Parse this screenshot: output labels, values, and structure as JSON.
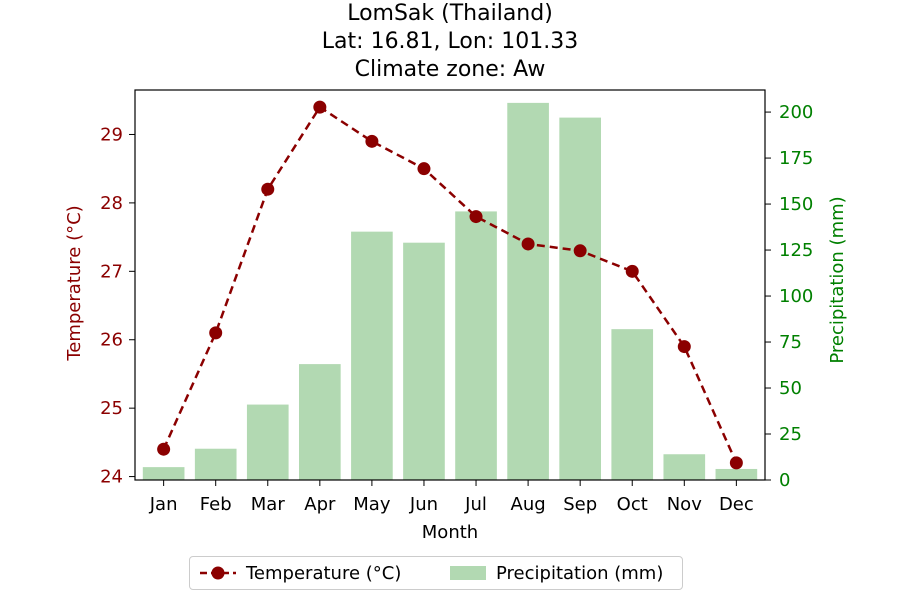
{
  "title": {
    "line1": "LomSak (Thailand)",
    "line2": "Lat: 16.81, Lon: 101.33",
    "line3": "Climate zone: Aw"
  },
  "chart_data": {
    "type": "bar",
    "categories": [
      "Jan",
      "Feb",
      "Mar",
      "Apr",
      "May",
      "Jun",
      "Jul",
      "Aug",
      "Sep",
      "Oct",
      "Nov",
      "Dec"
    ],
    "xlabel": "Month",
    "series": [
      {
        "name": "Temperature (°C)",
        "type": "line",
        "axis": "left",
        "color": "#8b0000",
        "values": [
          24.4,
          26.1,
          28.2,
          29.4,
          28.9,
          28.5,
          27.8,
          27.4,
          27.3,
          27.0,
          25.9,
          24.2
        ]
      },
      {
        "name": "Precipitation (mm)",
        "type": "bar",
        "axis": "right",
        "color": "#b2d9b2",
        "values": [
          7,
          17,
          41,
          63,
          135,
          129,
          146,
          205,
          197,
          82,
          14,
          6
        ]
      }
    ],
    "y_left": {
      "label": "Temperature (°C)",
      "color": "#8b0000",
      "lim": [
        23.95,
        29.65
      ],
      "ticks": [
        24,
        25,
        26,
        27,
        28,
        29
      ]
    },
    "y_right": {
      "label": "Precipitation (mm)",
      "color": "#008000",
      "lim": [
        0,
        212
      ],
      "ticks": [
        0,
        25,
        50,
        75,
        100,
        125,
        150,
        175,
        200
      ]
    },
    "grid": false,
    "legend": "below"
  }
}
